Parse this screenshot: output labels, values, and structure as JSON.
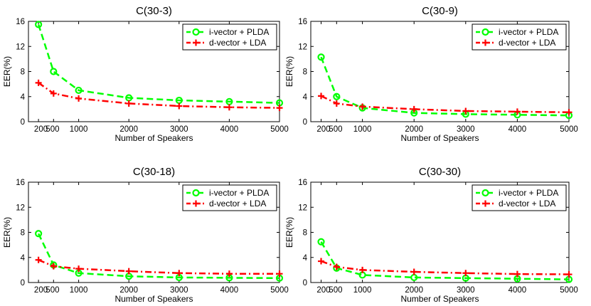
{
  "chart_data": [
    {
      "type": "line",
      "title": "C(30-3)",
      "xlabel": "Number of Speakers",
      "ylabel": "EER(%)",
      "x": [
        200,
        500,
        1000,
        2000,
        3000,
        4000,
        5000
      ],
      "xticks": [
        200,
        500,
        1000,
        2000,
        3000,
        4000,
        5000
      ],
      "xtick_labels": [
        "200",
        "500",
        "1000",
        "2000",
        "3000",
        "4000",
        "5000"
      ],
      "xlim": [
        0,
        5000
      ],
      "ylim": [
        0,
        16
      ],
      "yticks": [
        0,
        4,
        8,
        12,
        16
      ],
      "grid": false,
      "legend_position": "top-right",
      "series": [
        {
          "name": "i-vector + PLDA",
          "color": "#00ff00",
          "marker": "circle",
          "style": "dashed",
          "values": [
            15.5,
            8.0,
            5.0,
            3.8,
            3.4,
            3.2,
            3.0
          ]
        },
        {
          "name": "d-vector + LDA",
          "color": "#ff0000",
          "marker": "plus",
          "style": "dashdot",
          "values": [
            6.2,
            4.5,
            3.7,
            2.9,
            2.5,
            2.3,
            2.2
          ]
        }
      ]
    },
    {
      "type": "line",
      "title": "C(30-9)",
      "xlabel": "Number of Speakers",
      "ylabel": "EER(%)",
      "x": [
        200,
        500,
        1000,
        2000,
        3000,
        4000,
        5000
      ],
      "xticks": [
        200,
        500,
        1000,
        2000,
        3000,
        4000,
        5000
      ],
      "xtick_labels": [
        "200",
        "500",
        "1000",
        "2000",
        "3000",
        "4000",
        "5000"
      ],
      "xlim": [
        0,
        5000
      ],
      "ylim": [
        0,
        16
      ],
      "yticks": [
        0,
        4,
        8,
        12,
        16
      ],
      "grid": false,
      "legend_position": "top-right",
      "series": [
        {
          "name": "i-vector + PLDA",
          "color": "#00ff00",
          "marker": "circle",
          "style": "dashed",
          "values": [
            10.3,
            4.0,
            2.2,
            1.4,
            1.2,
            1.1,
            1.0
          ]
        },
        {
          "name": "d-vector + LDA",
          "color": "#ff0000",
          "marker": "plus",
          "style": "dashdot",
          "values": [
            4.1,
            2.9,
            2.4,
            2.0,
            1.7,
            1.6,
            1.5
          ]
        }
      ]
    },
    {
      "type": "line",
      "title": "C(30-18)",
      "xlabel": "Number of Speakers",
      "ylabel": "EER(%)",
      "x": [
        200,
        500,
        1000,
        2000,
        3000,
        4000,
        5000
      ],
      "xticks": [
        200,
        500,
        1000,
        2000,
        3000,
        4000,
        5000
      ],
      "xtick_labels": [
        "200",
        "500",
        "1000",
        "2000",
        "3000",
        "4000",
        "5000"
      ],
      "xlim": [
        0,
        5000
      ],
      "ylim": [
        0,
        16
      ],
      "yticks": [
        0,
        4,
        8,
        12,
        16
      ],
      "grid": false,
      "legend_position": "top-right",
      "series": [
        {
          "name": "i-vector + PLDA",
          "color": "#00ff00",
          "marker": "circle",
          "style": "dashed",
          "values": [
            7.8,
            2.8,
            1.5,
            1.0,
            0.8,
            0.75,
            0.7
          ]
        },
        {
          "name": "d-vector + LDA",
          "color": "#ff0000",
          "marker": "plus",
          "style": "dashdot",
          "values": [
            3.6,
            2.6,
            2.2,
            1.8,
            1.5,
            1.4,
            1.4
          ]
        }
      ]
    },
    {
      "type": "line",
      "title": "C(30-30)",
      "xlabel": "Number of Speakers",
      "ylabel": "EER(%)",
      "x": [
        200,
        500,
        1000,
        2000,
        3000,
        4000,
        5000
      ],
      "xticks": [
        200,
        500,
        1000,
        2000,
        3000,
        4000,
        5000
      ],
      "xtick_labels": [
        "200",
        "500",
        "1000",
        "2000",
        "3000",
        "4000",
        "5000"
      ],
      "xlim": [
        0,
        5000
      ],
      "ylim": [
        0,
        16
      ],
      "yticks": [
        0,
        4,
        8,
        12,
        16
      ],
      "grid": false,
      "legend_position": "top-right",
      "series": [
        {
          "name": "i-vector + PLDA",
          "color": "#00ff00",
          "marker": "circle",
          "style": "dashed",
          "values": [
            6.5,
            2.3,
            1.2,
            0.8,
            0.7,
            0.6,
            0.5
          ]
        },
        {
          "name": "d-vector + LDA",
          "color": "#ff0000",
          "marker": "plus",
          "style": "dashdot",
          "values": [
            3.4,
            2.5,
            2.0,
            1.7,
            1.5,
            1.35,
            1.3
          ]
        }
      ]
    }
  ]
}
